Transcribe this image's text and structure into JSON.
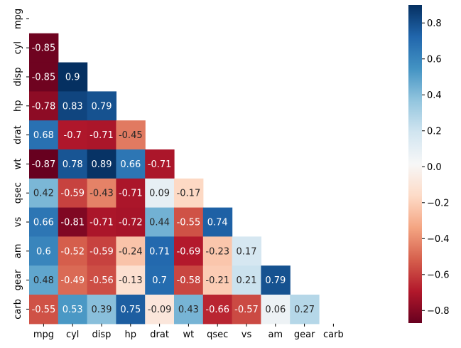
{
  "chart_data": {
    "type": "heatmap",
    "title": "",
    "variables": [
      "mpg",
      "cyl",
      "disp",
      "hp",
      "drat",
      "wt",
      "qsec",
      "vs",
      "am",
      "gear",
      "carb"
    ],
    "mask": "upper-triangle-including-diagonal",
    "values": [
      [],
      [
        -0.85
      ],
      [
        -0.85,
        0.9
      ],
      [
        -0.78,
        0.83,
        0.79
      ],
      [
        0.68,
        -0.7,
        -0.71,
        -0.45
      ],
      [
        -0.87,
        0.78,
        0.89,
        0.66,
        -0.71
      ],
      [
        0.42,
        -0.59,
        -0.43,
        -0.71,
        0.09,
        -0.17
      ],
      [
        0.66,
        -0.81,
        -0.71,
        -0.72,
        0.44,
        -0.55,
        0.74
      ],
      [
        0.6,
        -0.52,
        -0.59,
        -0.24,
        0.71,
        -0.69,
        -0.23,
        0.17
      ],
      [
        0.48,
        -0.49,
        -0.56,
        -0.13,
        0.7,
        -0.58,
        -0.21,
        0.21,
        0.79
      ],
      [
        -0.55,
        0.53,
        0.39,
        0.75,
        -0.09,
        0.43,
        -0.66,
        -0.57,
        0.06,
        0.27
      ]
    ],
    "colormap": "RdBu",
    "colorbar": {
      "vmin": -0.87,
      "vmax": 0.9,
      "ticks": [
        0.8,
        0.6,
        0.4,
        0.2,
        0.0,
        -0.2,
        -0.4,
        -0.6,
        -0.8
      ],
      "tick_labels": [
        "0.8",
        "0.6",
        "0.4",
        "0.2",
        "0.0",
        "−0.2",
        "−0.4",
        "−0.6",
        "−0.8"
      ]
    },
    "annotations": true,
    "grid": false
  }
}
